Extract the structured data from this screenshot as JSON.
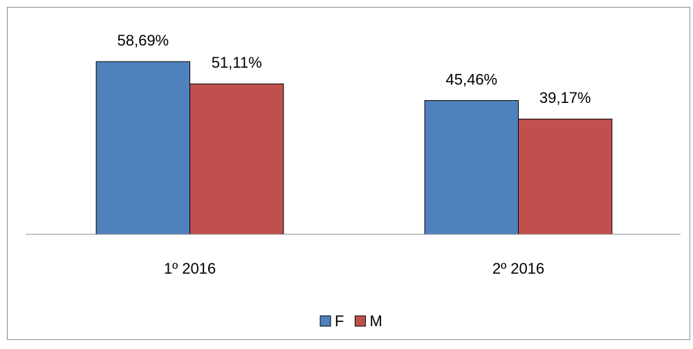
{
  "chart_data": {
    "type": "bar",
    "categories": [
      "1º 2016",
      "2º 2016"
    ],
    "series": [
      {
        "name": "F",
        "color": "#4f81bd",
        "values": [
          58.69,
          45.46
        ],
        "value_labels": [
          "58,69%",
          "45,46%"
        ]
      },
      {
        "name": "M",
        "color": "#c0504d",
        "values": [
          51.11,
          39.17
        ],
        "value_labels": [
          "51,11%",
          "39,17%"
        ]
      }
    ],
    "ylim": [
      0,
      70
    ],
    "legend": "bottom"
  }
}
